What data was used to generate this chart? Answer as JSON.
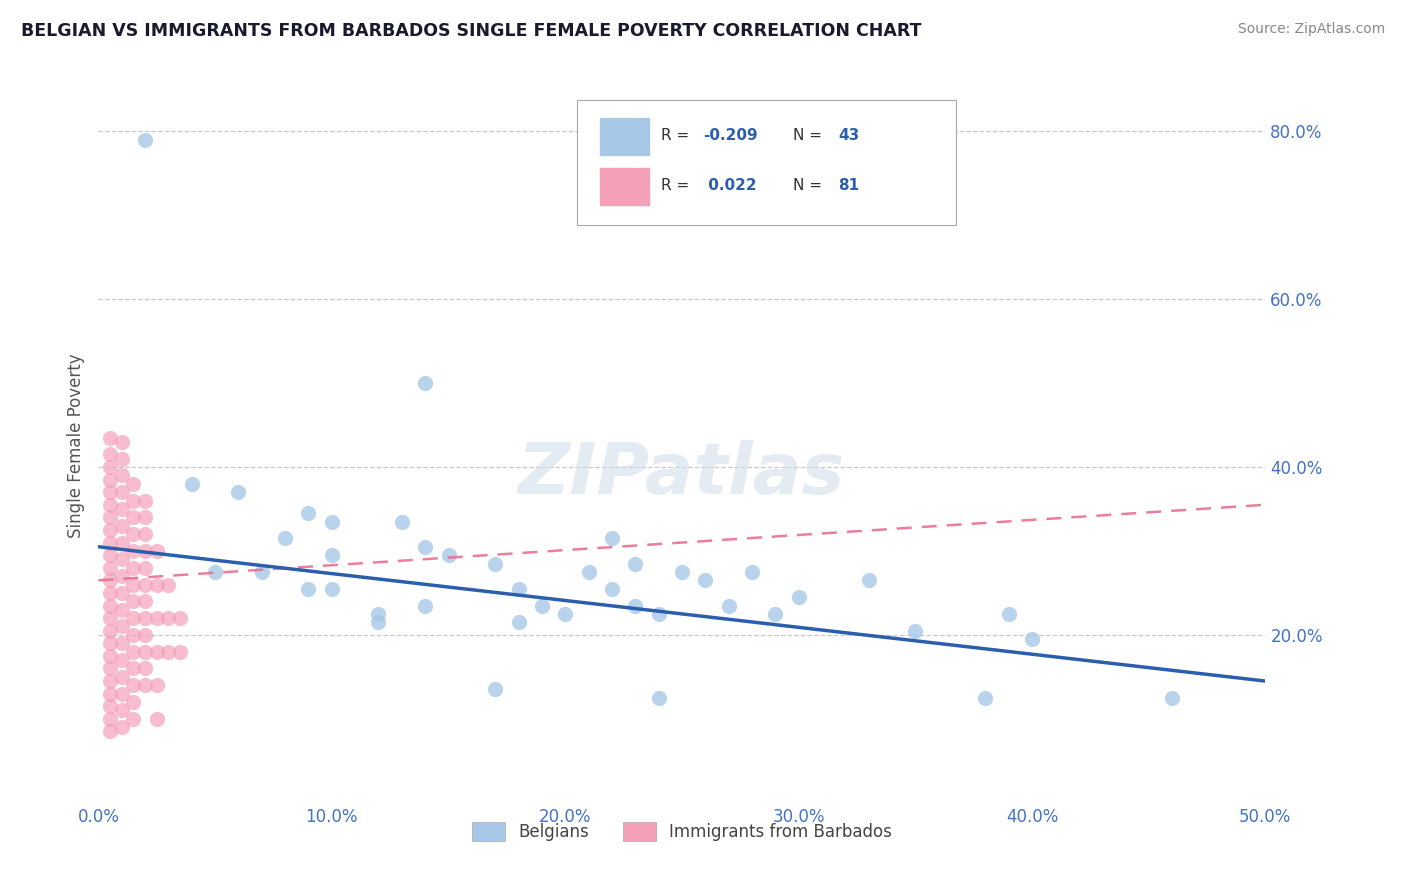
{
  "title": "BELGIAN VS IMMIGRANTS FROM BARBADOS SINGLE FEMALE POVERTY CORRELATION CHART",
  "source": "Source: ZipAtlas.com",
  "ylabel": "Single Female Poverty",
  "xlim": [
    0.0,
    0.5
  ],
  "ylim": [
    0.0,
    0.85
  ],
  "xtick_labels": [
    "0.0%",
    "10.0%",
    "20.0%",
    "30.0%",
    "40.0%",
    "50.0%"
  ],
  "xtick_vals": [
    0.0,
    0.1,
    0.2,
    0.3,
    0.4,
    0.5
  ],
  "ytick_labels": [
    "20.0%",
    "40.0%",
    "60.0%",
    "80.0%"
  ],
  "ytick_vals": [
    0.2,
    0.4,
    0.6,
    0.8
  ],
  "legend_blue_label": "Belgians",
  "legend_pink_label": "Immigrants from Barbados",
  "blue_color": "#a8c8e8",
  "pink_color": "#f4a0b8",
  "blue_line_color": "#2b5fad",
  "pink_line_color": "#e87090",
  "watermark": "ZIPatlas",
  "blue_scatter": [
    [
      0.02,
      0.79
    ],
    [
      0.14,
      0.5
    ],
    [
      0.04,
      0.38
    ],
    [
      0.06,
      0.37
    ],
    [
      0.09,
      0.345
    ],
    [
      0.1,
      0.335
    ],
    [
      0.13,
      0.335
    ],
    [
      0.08,
      0.315
    ],
    [
      0.22,
      0.315
    ],
    [
      0.14,
      0.305
    ],
    [
      0.1,
      0.295
    ],
    [
      0.15,
      0.295
    ],
    [
      0.17,
      0.285
    ],
    [
      0.23,
      0.285
    ],
    [
      0.05,
      0.275
    ],
    [
      0.07,
      0.275
    ],
    [
      0.21,
      0.275
    ],
    [
      0.25,
      0.275
    ],
    [
      0.28,
      0.275
    ],
    [
      0.26,
      0.265
    ],
    [
      0.33,
      0.265
    ],
    [
      0.09,
      0.255
    ],
    [
      0.1,
      0.255
    ],
    [
      0.18,
      0.255
    ],
    [
      0.22,
      0.255
    ],
    [
      0.3,
      0.245
    ],
    [
      0.14,
      0.235
    ],
    [
      0.19,
      0.235
    ],
    [
      0.23,
      0.235
    ],
    [
      0.27,
      0.235
    ],
    [
      0.12,
      0.225
    ],
    [
      0.2,
      0.225
    ],
    [
      0.24,
      0.225
    ],
    [
      0.29,
      0.225
    ],
    [
      0.39,
      0.225
    ],
    [
      0.12,
      0.215
    ],
    [
      0.18,
      0.215
    ],
    [
      0.35,
      0.205
    ],
    [
      0.4,
      0.195
    ],
    [
      0.17,
      0.135
    ],
    [
      0.24,
      0.125
    ],
    [
      0.38,
      0.125
    ],
    [
      0.46,
      0.125
    ]
  ],
  "pink_scatter": [
    [
      0.005,
      0.435
    ],
    [
      0.005,
      0.415
    ],
    [
      0.005,
      0.4
    ],
    [
      0.005,
      0.385
    ],
    [
      0.005,
      0.37
    ],
    [
      0.005,
      0.355
    ],
    [
      0.005,
      0.34
    ],
    [
      0.005,
      0.325
    ],
    [
      0.005,
      0.31
    ],
    [
      0.005,
      0.295
    ],
    [
      0.005,
      0.28
    ],
    [
      0.005,
      0.265
    ],
    [
      0.005,
      0.25
    ],
    [
      0.005,
      0.235
    ],
    [
      0.005,
      0.22
    ],
    [
      0.005,
      0.205
    ],
    [
      0.005,
      0.19
    ],
    [
      0.005,
      0.175
    ],
    [
      0.005,
      0.16
    ],
    [
      0.005,
      0.145
    ],
    [
      0.005,
      0.13
    ],
    [
      0.005,
      0.115
    ],
    [
      0.005,
      0.1
    ],
    [
      0.005,
      0.085
    ],
    [
      0.01,
      0.43
    ],
    [
      0.01,
      0.41
    ],
    [
      0.01,
      0.39
    ],
    [
      0.01,
      0.37
    ],
    [
      0.01,
      0.35
    ],
    [
      0.01,
      0.33
    ],
    [
      0.01,
      0.31
    ],
    [
      0.01,
      0.29
    ],
    [
      0.01,
      0.27
    ],
    [
      0.01,
      0.25
    ],
    [
      0.01,
      0.23
    ],
    [
      0.01,
      0.21
    ],
    [
      0.01,
      0.19
    ],
    [
      0.01,
      0.17
    ],
    [
      0.01,
      0.15
    ],
    [
      0.01,
      0.13
    ],
    [
      0.01,
      0.11
    ],
    [
      0.01,
      0.09
    ],
    [
      0.015,
      0.38
    ],
    [
      0.015,
      0.36
    ],
    [
      0.015,
      0.34
    ],
    [
      0.015,
      0.32
    ],
    [
      0.015,
      0.3
    ],
    [
      0.015,
      0.28
    ],
    [
      0.015,
      0.26
    ],
    [
      0.015,
      0.24
    ],
    [
      0.015,
      0.22
    ],
    [
      0.015,
      0.2
    ],
    [
      0.015,
      0.18
    ],
    [
      0.015,
      0.16
    ],
    [
      0.015,
      0.14
    ],
    [
      0.015,
      0.12
    ],
    [
      0.015,
      0.1
    ],
    [
      0.02,
      0.36
    ],
    [
      0.02,
      0.34
    ],
    [
      0.02,
      0.32
    ],
    [
      0.02,
      0.3
    ],
    [
      0.02,
      0.28
    ],
    [
      0.02,
      0.26
    ],
    [
      0.02,
      0.24
    ],
    [
      0.02,
      0.22
    ],
    [
      0.02,
      0.2
    ],
    [
      0.02,
      0.18
    ],
    [
      0.02,
      0.16
    ],
    [
      0.02,
      0.14
    ],
    [
      0.025,
      0.3
    ],
    [
      0.025,
      0.26
    ],
    [
      0.025,
      0.22
    ],
    [
      0.025,
      0.18
    ],
    [
      0.025,
      0.14
    ],
    [
      0.025,
      0.1
    ],
    [
      0.03,
      0.26
    ],
    [
      0.03,
      0.22
    ],
    [
      0.03,
      0.18
    ],
    [
      0.035,
      0.22
    ],
    [
      0.035,
      0.18
    ]
  ],
  "blue_trend": [
    0.0,
    0.5,
    0.305,
    0.145
  ],
  "pink_trend": [
    0.0,
    0.5,
    0.265,
    0.355
  ],
  "background_color": "#ffffff",
  "grid_color": "#c8c8c8",
  "tick_color": "#4472c4"
}
